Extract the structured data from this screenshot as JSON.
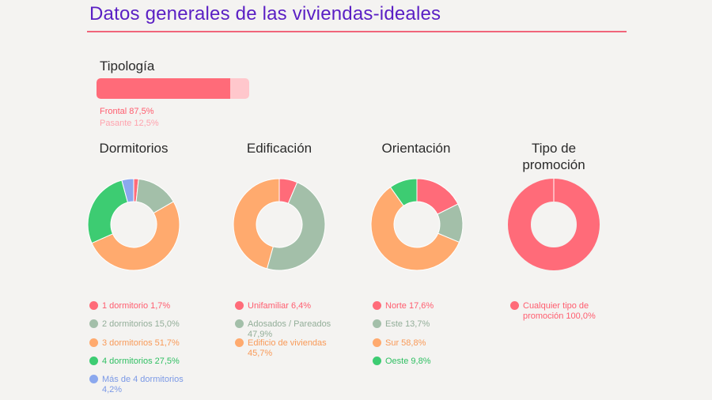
{
  "title": "Datos generales de las viviendas-ideales",
  "colors": {
    "title": "#5a1fc4",
    "rule": "#f0647a",
    "red": "#ff6b79",
    "pink": "#ffc7cc",
    "sage": "#a3bfa9",
    "orange": "#ffaa6e",
    "green": "#3dcc72",
    "blue": "#8ba8ee"
  },
  "tipologia": {
    "title": "Tipología",
    "legend": [
      {
        "label": "Frontal 87,5%",
        "value": 87.5,
        "color": "#ff6b79"
      },
      {
        "label": "Pasante 12,5%",
        "value": 12.5,
        "color": "#ffb2bb"
      }
    ]
  },
  "chart_data": [
    {
      "type": "bar",
      "stacked": true,
      "title": "Tipología",
      "series": [
        {
          "name": "Frontal",
          "values": [
            87.5
          ]
        },
        {
          "name": "Pasante",
          "values": [
            12.5
          ]
        }
      ],
      "unit": "%"
    },
    {
      "type": "pie",
      "donut": true,
      "title": "Dormitorios",
      "slices": [
        {
          "label": "1 dormitorio 1,7%",
          "value": 1.7,
          "color": "#ff6b79"
        },
        {
          "label": "2 dormitorios 15,0%",
          "value": 15.0,
          "color": "#a3bfa9"
        },
        {
          "label": "3 dormitorios 51,7%",
          "value": 51.7,
          "color": "#ffaa6e"
        },
        {
          "label": "4 dormitorios 27,5%",
          "value": 27.5,
          "color": "#3dcc72"
        },
        {
          "label": "Más de 4 dormitorios 4,2%",
          "value": 4.2,
          "color": "#8ba8ee"
        }
      ]
    },
    {
      "type": "pie",
      "donut": true,
      "title": "Edificación",
      "slices": [
        {
          "label": "Unifamiliar 6,4%",
          "value": 6.4,
          "color": "#ff6b79"
        },
        {
          "label": "Adosados / Pareados 47,9%",
          "value": 47.9,
          "color": "#a3bfa9"
        },
        {
          "label": "Edificio de viviendas 45,7%",
          "value": 45.7,
          "color": "#ffaa6e"
        }
      ]
    },
    {
      "type": "pie",
      "donut": true,
      "title": "Orientación",
      "slices": [
        {
          "label": "Norte 17,6%",
          "value": 17.6,
          "color": "#ff6b79"
        },
        {
          "label": "Este 13,7%",
          "value": 13.7,
          "color": "#a3bfa9"
        },
        {
          "label": "Sur 58,8%",
          "value": 58.8,
          "color": "#ffaa6e"
        },
        {
          "label": "Oeste 9,8%",
          "value": 9.8,
          "color": "#3dcc72"
        }
      ]
    },
    {
      "type": "pie",
      "donut": true,
      "title": "Tipo de promoción",
      "slices": [
        {
          "label": "Cualquier tipo de promoción 100,0%",
          "value": 100.0,
          "color": "#ff6b79"
        }
      ]
    }
  ]
}
